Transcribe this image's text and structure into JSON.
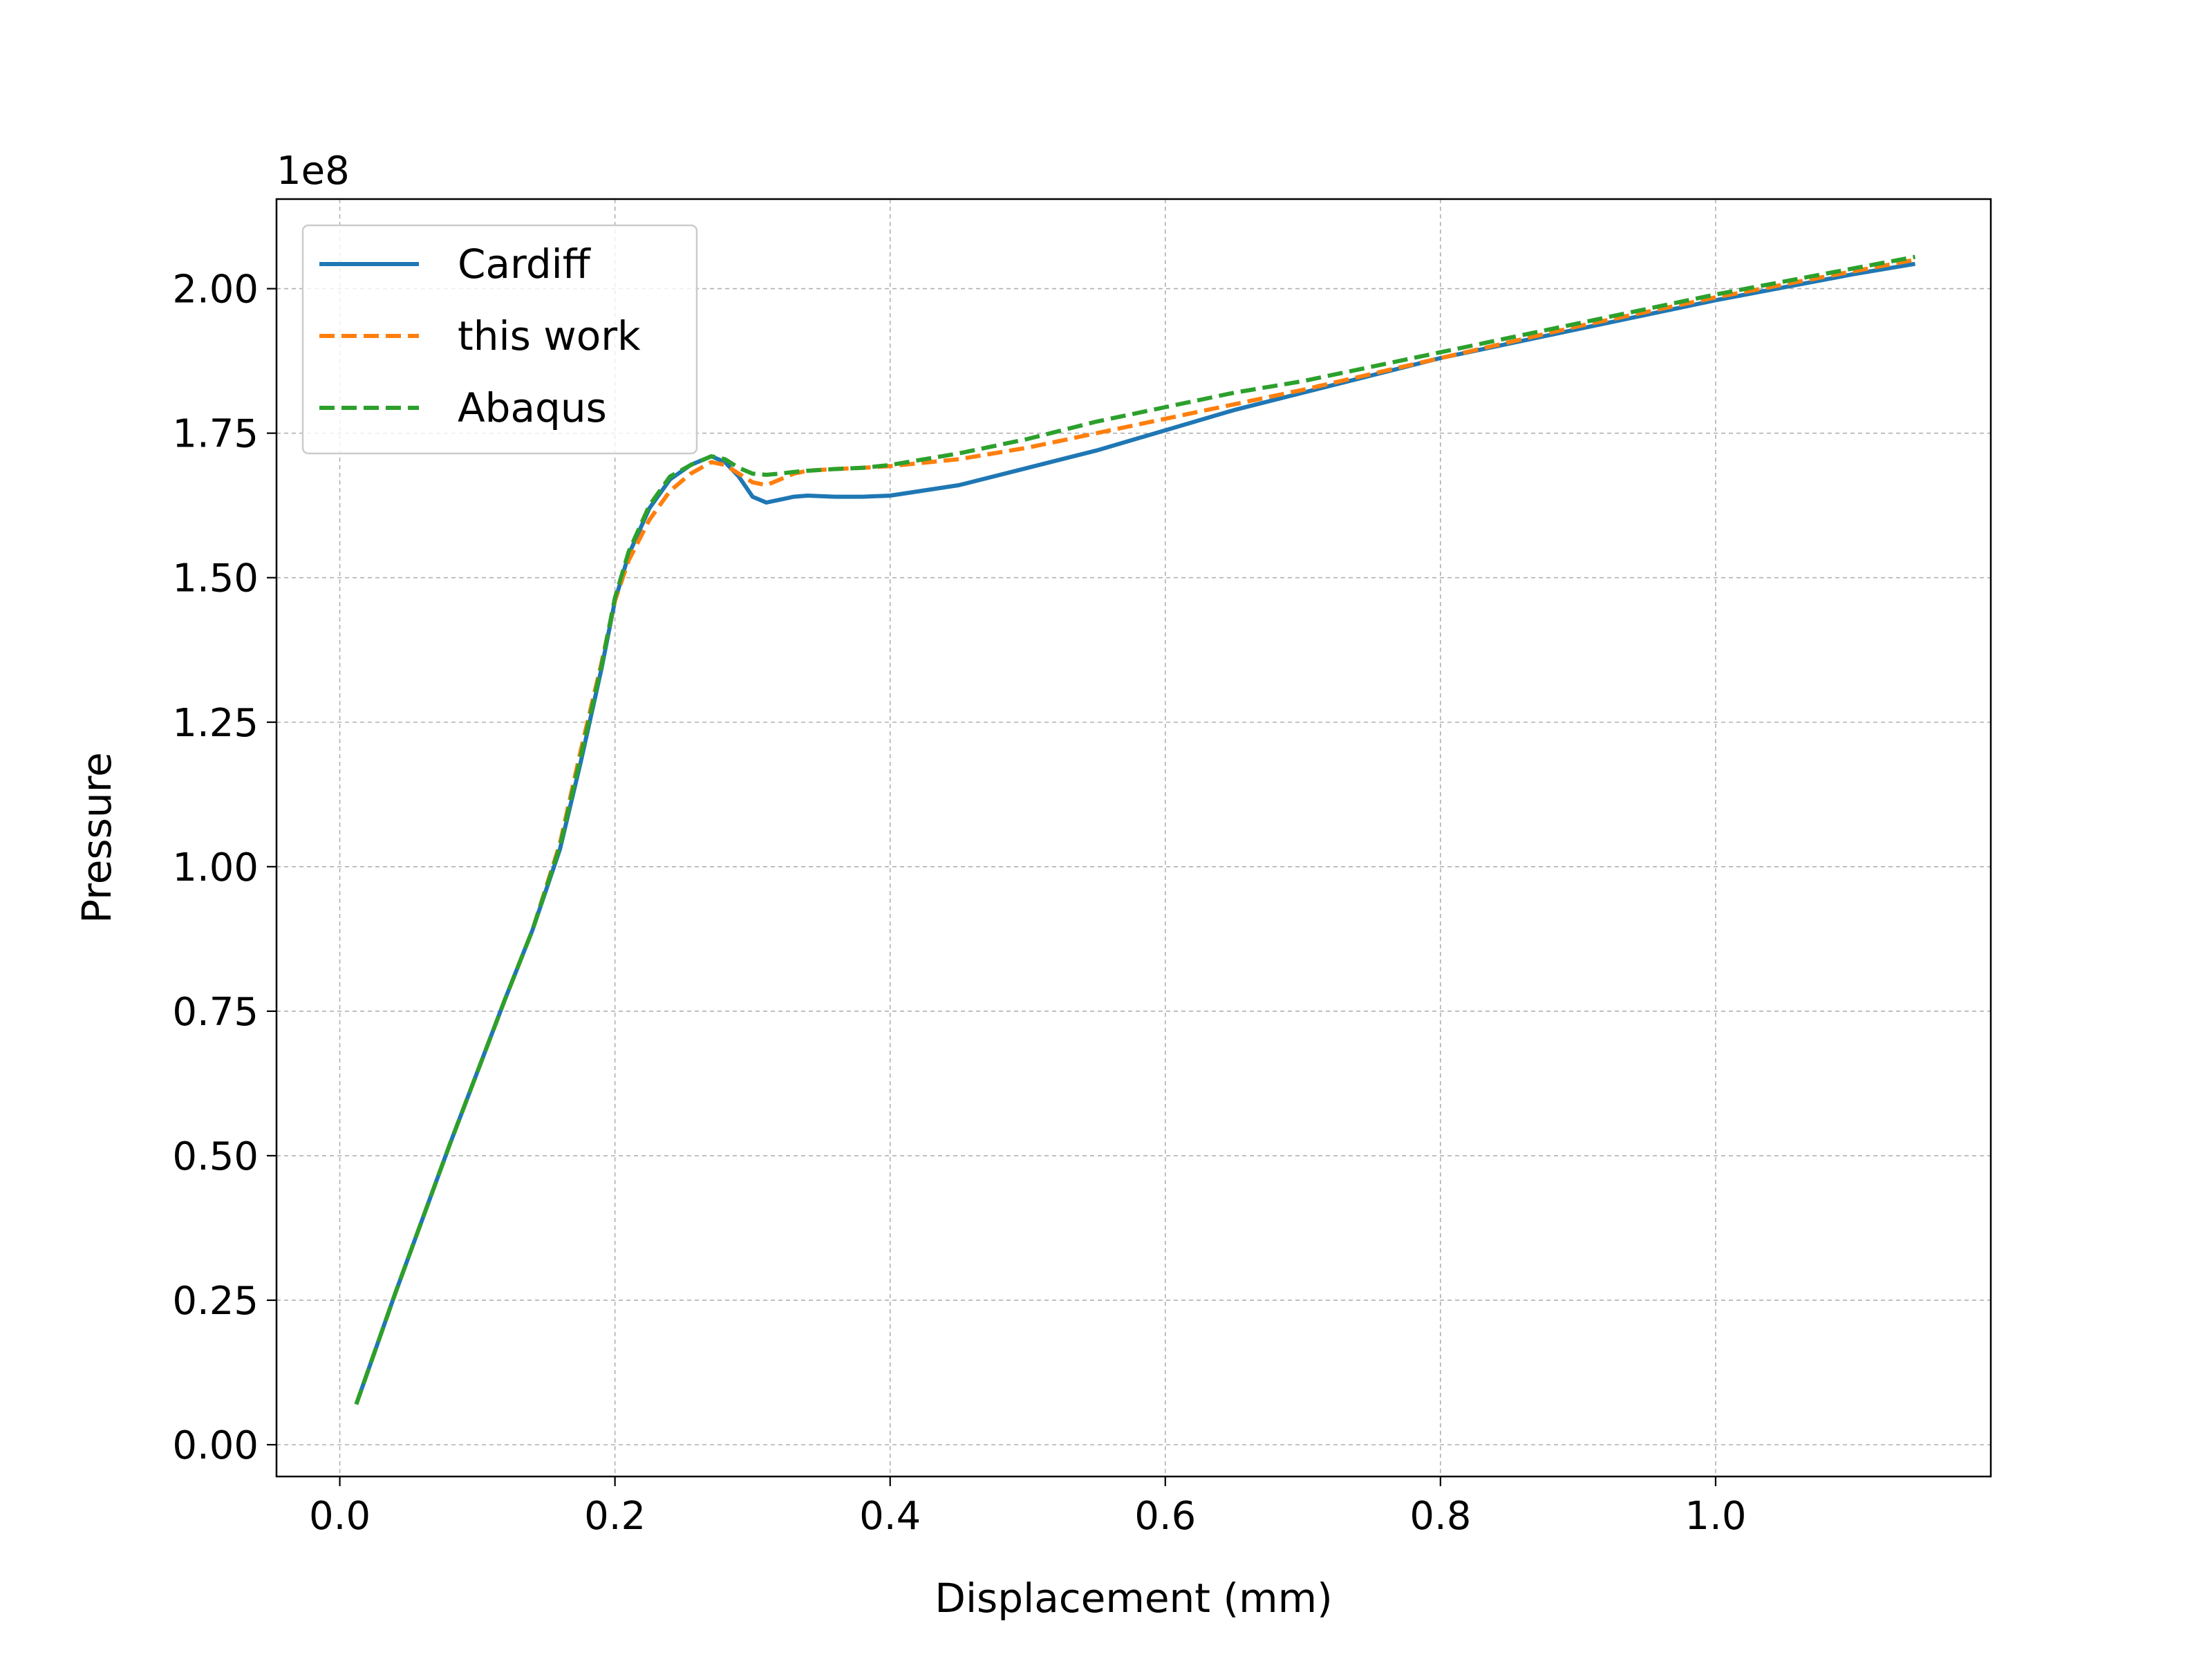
{
  "chart_data": {
    "type": "line",
    "title": "",
    "xlabel": "Displacement (mm)",
    "ylabel": "Pressure",
    "y_offset_label": "1e8",
    "xlim": [
      -0.046,
      1.2
    ],
    "ylim": [
      -5500000,
      215500000
    ],
    "x_ticks": [
      0.0,
      0.2,
      0.4,
      0.6,
      0.8,
      1.0
    ],
    "x_tick_labels": [
      "0.0",
      "0.2",
      "0.4",
      "0.6",
      "0.8",
      "1.0"
    ],
    "y_ticks": [
      0,
      25000000,
      50000000,
      75000000,
      100000000,
      125000000,
      150000000,
      175000000,
      200000000
    ],
    "y_tick_labels": [
      "0.00",
      "0.25",
      "0.50",
      "0.75",
      "1.00",
      "1.25",
      "1.50",
      "1.75",
      "2.00"
    ],
    "grid": true,
    "legend_position": "top-left",
    "series": [
      {
        "name": "Cardiff",
        "color": "#1f77b4",
        "style": "solid",
        "x": [
          0.012,
          0.04,
          0.08,
          0.12,
          0.14,
          0.16,
          0.175,
          0.19,
          0.2,
          0.21,
          0.225,
          0.24,
          0.255,
          0.27,
          0.28,
          0.29,
          0.3,
          0.31,
          0.32,
          0.33,
          0.34,
          0.36,
          0.38,
          0.4,
          0.45,
          0.5,
          0.55,
          0.6,
          0.65,
          0.7,
          0.8,
          0.9,
          1.0,
          1.1,
          1.145
        ],
        "y": [
          7000000,
          26000000,
          52000000,
          77000000,
          89000000,
          103000000,
          118000000,
          134000000,
          146000000,
          154000000,
          162000000,
          167000000,
          169500000,
          171000000,
          170000000,
          167500000,
          164000000,
          163000000,
          163500000,
          164000000,
          164200000,
          164000000,
          164000000,
          164200000,
          166000000,
          169000000,
          172000000,
          175500000,
          179000000,
          182000000,
          188000000,
          193000000,
          198000000,
          202500000,
          204300000
        ]
      },
      {
        "name": "this work",
        "color": "#ff7f0e",
        "style": "dashed",
        "x": [
          0.012,
          0.04,
          0.08,
          0.12,
          0.14,
          0.16,
          0.175,
          0.19,
          0.2,
          0.21,
          0.225,
          0.24,
          0.255,
          0.27,
          0.28,
          0.29,
          0.3,
          0.31,
          0.32,
          0.33,
          0.34,
          0.36,
          0.38,
          0.4,
          0.45,
          0.5,
          0.55,
          0.6,
          0.65,
          0.7,
          0.8,
          0.9,
          1.0,
          1.1,
          1.145
        ],
        "y": [
          7000000,
          26000000,
          52000000,
          77000000,
          89000000,
          104000000,
          120000000,
          135000000,
          146000000,
          153000000,
          160000000,
          165000000,
          168000000,
          170000000,
          169500000,
          168000000,
          166500000,
          166000000,
          167000000,
          168000000,
          168500000,
          168800000,
          169000000,
          169300000,
          170500000,
          172500000,
          175000000,
          177500000,
          180000000,
          182500000,
          188000000,
          193500000,
          198500000,
          203000000,
          205000000
        ]
      },
      {
        "name": "Abaqus",
        "color": "#2ca02c",
        "style": "dashed",
        "x": [
          0.012,
          0.04,
          0.08,
          0.12,
          0.14,
          0.16,
          0.175,
          0.19,
          0.2,
          0.21,
          0.225,
          0.24,
          0.255,
          0.27,
          0.28,
          0.29,
          0.3,
          0.31,
          0.32,
          0.33,
          0.34,
          0.36,
          0.38,
          0.4,
          0.45,
          0.5,
          0.55,
          0.6,
          0.65,
          0.7,
          0.8,
          0.9,
          1.0,
          1.1,
          1.145
        ],
        "y": [
          7000000,
          26000000,
          52000000,
          77000000,
          89000000,
          103500000,
          119000000,
          134500000,
          146500000,
          154500000,
          162500000,
          167500000,
          169500000,
          171000000,
          170500000,
          169000000,
          168000000,
          167800000,
          168000000,
          168300000,
          168500000,
          168800000,
          169000000,
          169500000,
          171500000,
          174000000,
          177000000,
          179500000,
          182000000,
          184000000,
          189000000,
          194000000,
          199000000,
          203500000,
          205500000
        ]
      }
    ]
  }
}
